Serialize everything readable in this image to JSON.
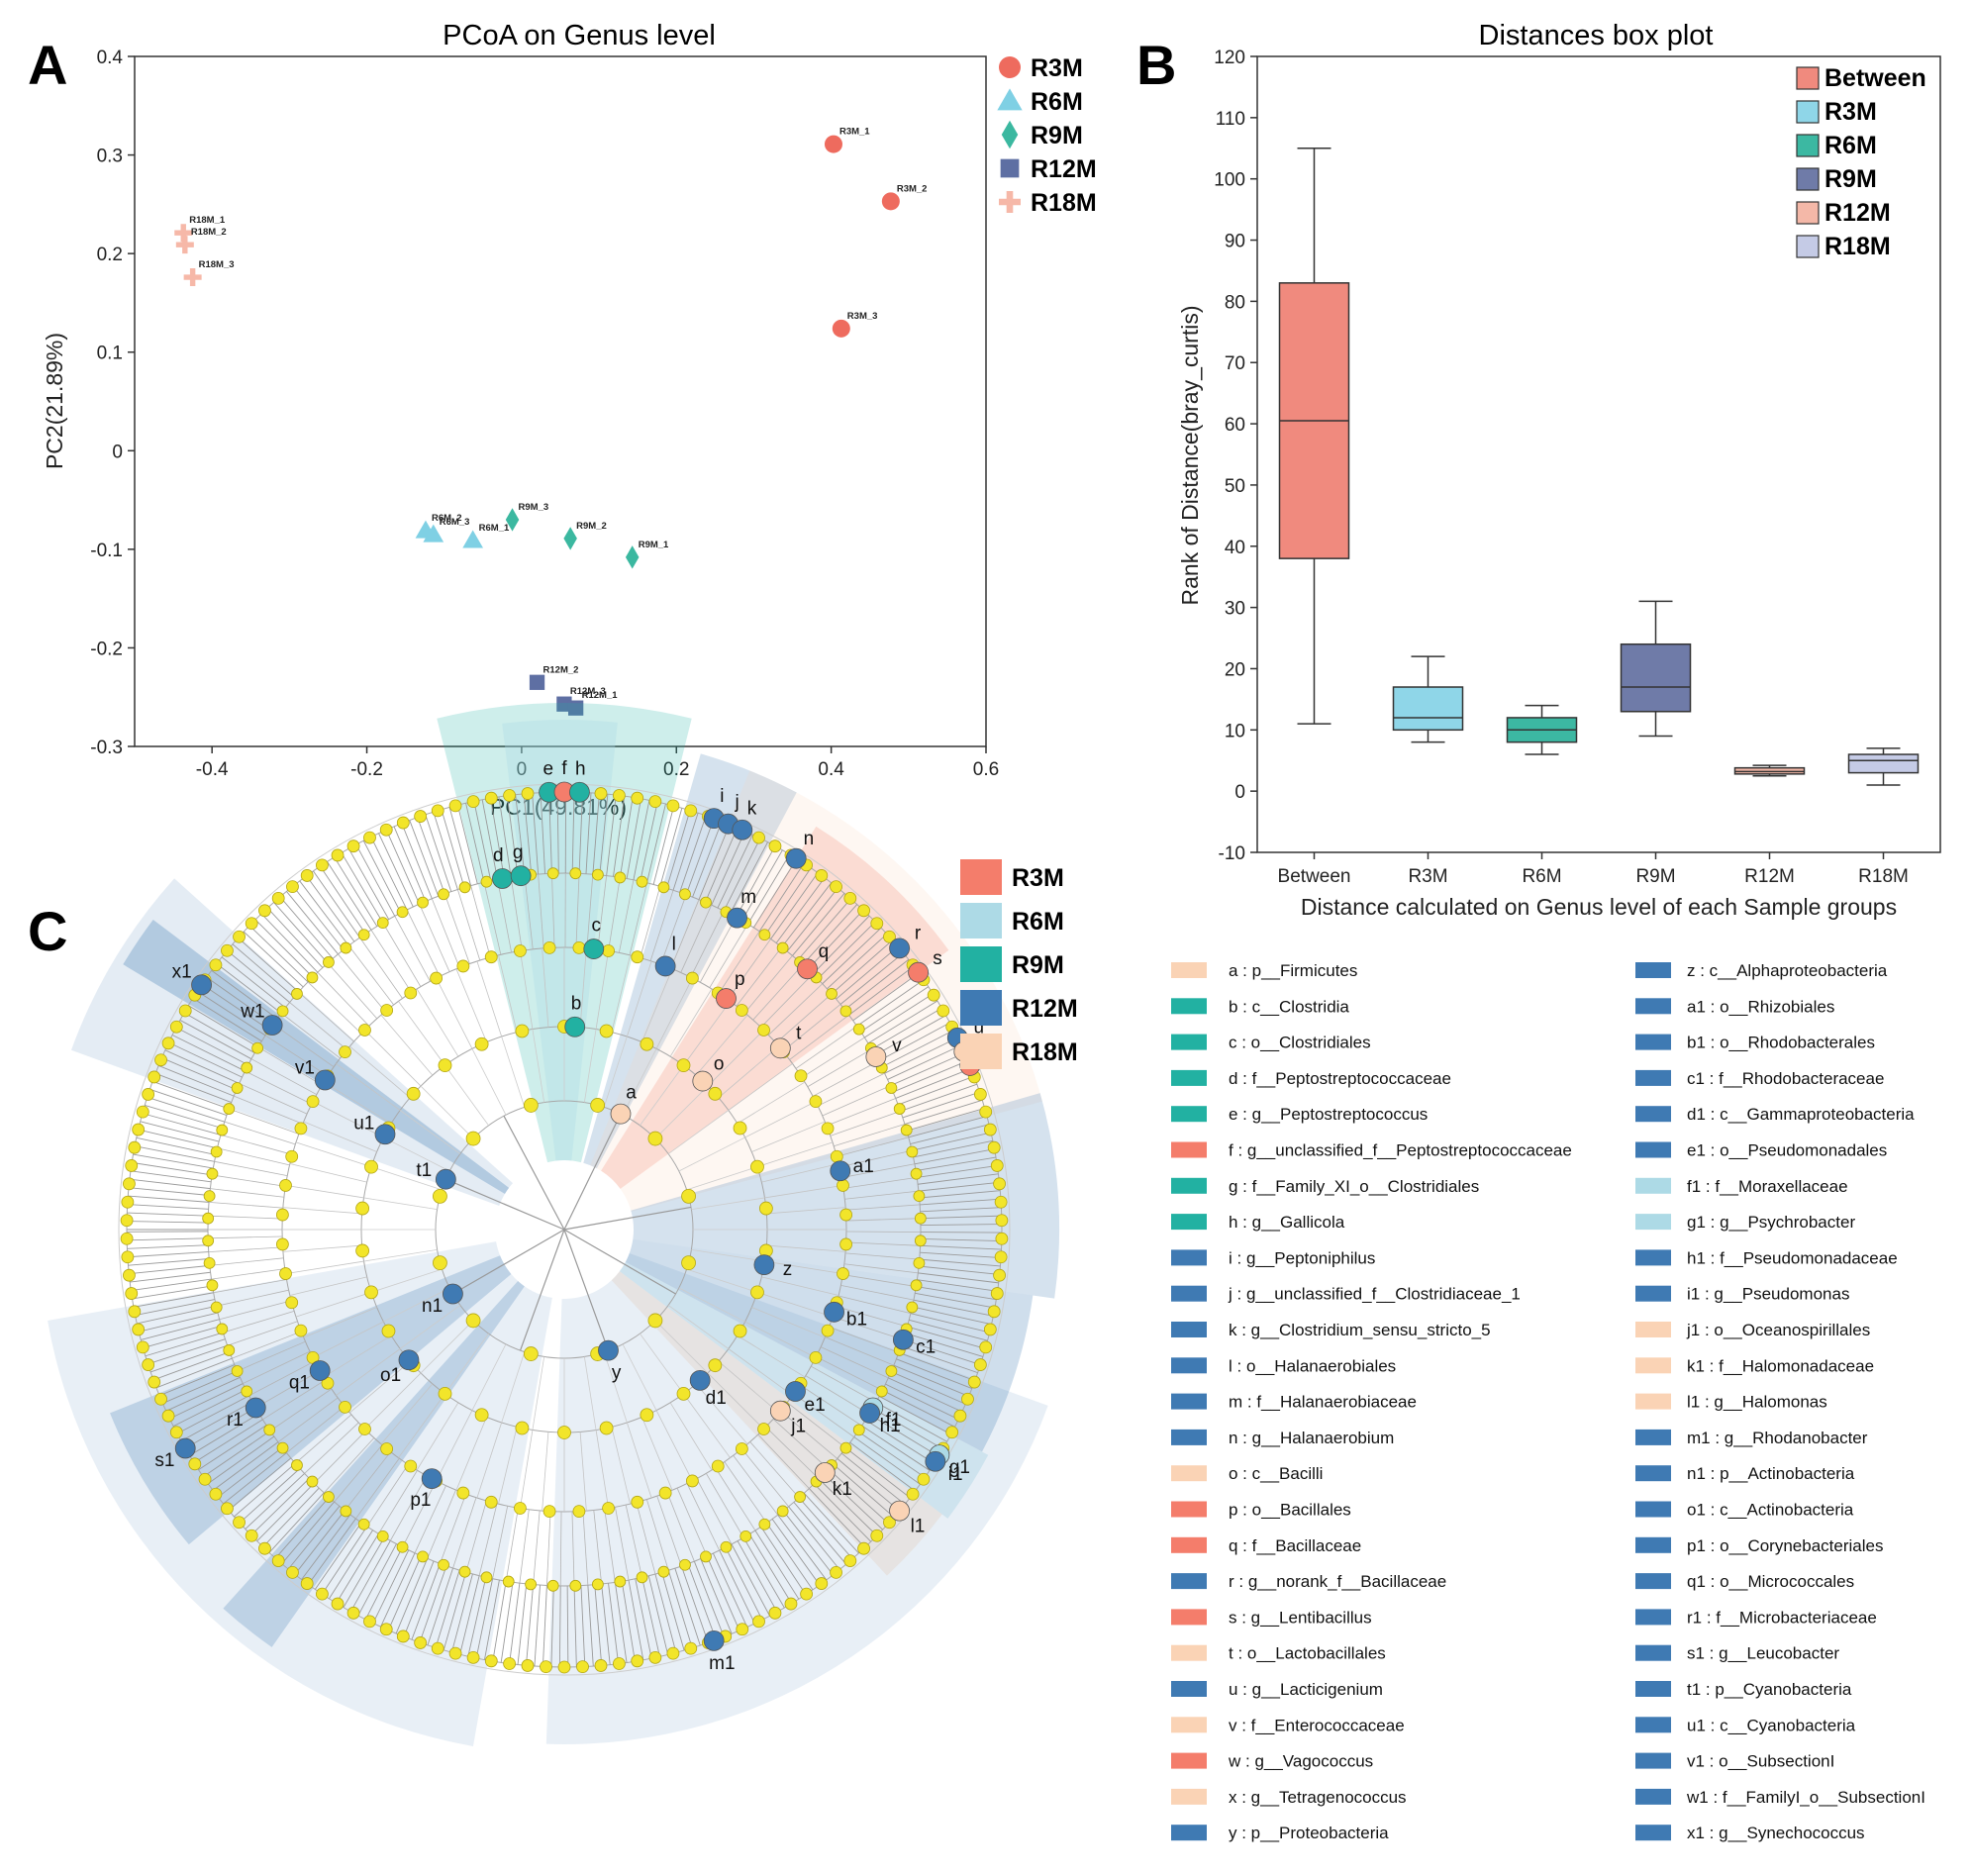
{
  "panels": {
    "A": {
      "letter": "A",
      "chart_data": {
        "type": "scatter",
        "title": "PCoA on Genus level",
        "xlabel": "PC1(49.81%)",
        "ylabel": "PC2(21.89%)",
        "xlim": [
          -0.5,
          0.6
        ],
        "ylim": [
          -0.3,
          0.4
        ],
        "xticks": [
          -0.4,
          -0.2,
          0,
          0.2,
          0.4,
          0.6
        ],
        "xtick_labels": [
          "-0.4",
          "-0.2",
          "0",
          "0.2",
          "0.4",
          "0.6"
        ],
        "yticks": [
          -0.3,
          -0.2,
          -0.1,
          0,
          0.1,
          0.2,
          0.3,
          0.4
        ],
        "ytick_labels": [
          "-0.3",
          "-0.2",
          "-0.1",
          "0",
          "0.1",
          "0.2",
          "0.3",
          "0.4"
        ],
        "legend_position": "outside-top-right",
        "series": [
          {
            "name": "R3M",
            "marker": "circle",
            "color": "#EE6B5E",
            "points": [
              {
                "label": "R3M_1",
                "x": 0.403,
                "y": 0.311
              },
              {
                "label": "R3M_2",
                "x": 0.477,
                "y": 0.253
              },
              {
                "label": "R3M_3",
                "x": 0.413,
                "y": 0.124
              }
            ]
          },
          {
            "name": "R6M",
            "marker": "triangle",
            "color": "#7FD0E4",
            "points": [
              {
                "label": "R6M_2",
                "x": -0.124,
                "y": -0.081
              },
              {
                "label": "R6M_3",
                "x": -0.114,
                "y": -0.085
              },
              {
                "label": "R6M_1",
                "x": -0.063,
                "y": -0.091
              }
            ]
          },
          {
            "name": "R9M",
            "marker": "diamond",
            "color": "#3BB8A0",
            "points": [
              {
                "label": "R9M_3",
                "x": -0.012,
                "y": -0.07
              },
              {
                "label": "R9M_2",
                "x": 0.063,
                "y": -0.089
              },
              {
                "label": "R9M_1",
                "x": 0.143,
                "y": -0.108
              }
            ]
          },
          {
            "name": "R12M",
            "marker": "square",
            "color": "#5E6FA3",
            "points": [
              {
                "label": "R12M_2",
                "x": 0.02,
                "y": -0.235
              },
              {
                "label": "R12M_3",
                "x": 0.055,
                "y": -0.257
              },
              {
                "label": "R12M_1",
                "x": 0.07,
                "y": -0.261
              }
            ]
          },
          {
            "name": "R18M",
            "marker": "plus",
            "color": "#F6B8A8",
            "points": [
              {
                "label": "R18M_1",
                "x": -0.437,
                "y": 0.221
              },
              {
                "label": "R18M_2",
                "x": -0.435,
                "y": 0.209
              },
              {
                "label": "R18M_3",
                "x": -0.425,
                "y": 0.176
              }
            ]
          }
        ]
      }
    },
    "B": {
      "letter": "B",
      "chart_data": {
        "type": "box",
        "title": "Distances box plot",
        "xlabel": "Distance calculated on Genus level of each Sample groups",
        "ylabel": "Rank of Distance(bray_curtis)",
        "ylim": [
          -10,
          120
        ],
        "yticks": [
          -10,
          0,
          10,
          20,
          30,
          40,
          50,
          60,
          70,
          80,
          90,
          100,
          110,
          120
        ],
        "ytick_labels": [
          "-10",
          "0",
          "10",
          "20",
          "30",
          "40",
          "50",
          "60",
          "70",
          "80",
          "90",
          "100",
          "110",
          "120"
        ],
        "legend_position": "top-right",
        "categories": [
          "Between",
          "R3M",
          "R6M",
          "R9M",
          "R12M",
          "R18M"
        ],
        "boxes": [
          {
            "name": "Between",
            "color": "#F08A7E",
            "whisker_low": 11,
            "q1": 38,
            "median": 60.5,
            "q3": 83,
            "whisker_high": 105
          },
          {
            "name": "R3M",
            "color": "#8FD6E8",
            "whisker_low": 8,
            "q1": 10,
            "median": 12,
            "q3": 17,
            "whisker_high": 22
          },
          {
            "name": "R6M",
            "color": "#3CB8A2",
            "whisker_low": 6,
            "q1": 8,
            "median": 10,
            "q3": 12,
            "whisker_high": 14
          },
          {
            "name": "R9M",
            "color": "#6F7BA8",
            "whisker_low": 9,
            "q1": 13,
            "median": 17,
            "q3": 24,
            "whisker_high": 31
          },
          {
            "name": "R12M",
            "color": "#F4B8A8",
            "whisker_low": 2.5,
            "q1": 2.8,
            "median": 3.2,
            "q3": 3.8,
            "whisker_high": 4.2
          },
          {
            "name": "R18M",
            "color": "#C5CBE6",
            "whisker_low": 1,
            "q1": 3,
            "median": 5,
            "q3": 6,
            "whisker_high": 7
          }
        ]
      }
    },
    "C": {
      "letter": "C",
      "chart_data": {
        "type": "cladogram",
        "groups": [
          {
            "name": "R3M",
            "color": "#F47D6B"
          },
          {
            "name": "R6M",
            "color": "#ADDAE6"
          },
          {
            "name": "R9M",
            "color": "#22B1A2"
          },
          {
            "name": "R12M",
            "color": "#3F7AB3"
          },
          {
            "name": "R18M",
            "color": "#FAD3B5"
          }
        ],
        "taxa": [
          {
            "key": "a",
            "label": "a : p__Firmicutes",
            "group": "R18M"
          },
          {
            "key": "b",
            "label": "b : c__Clostridia",
            "group": "R9M"
          },
          {
            "key": "c",
            "label": "c : o__Clostridiales",
            "group": "R9M"
          },
          {
            "key": "d",
            "label": "d : f__Peptostreptococcaceae",
            "group": "R9M"
          },
          {
            "key": "e",
            "label": "e : g__Peptostreptococcus",
            "group": "R9M"
          },
          {
            "key": "f",
            "label": "f : g__unclassified_f__Peptostreptococcaceae",
            "group": "R3M"
          },
          {
            "key": "g",
            "label": "g : f__Family_XI_o__Clostridiales",
            "group": "R9M"
          },
          {
            "key": "h",
            "label": "h : g__Gallicola",
            "group": "R9M"
          },
          {
            "key": "i",
            "label": "i : g__Peptoniphilus",
            "group": "R12M"
          },
          {
            "key": "j",
            "label": "j : g__unclassified_f__Clostridiaceae_1",
            "group": "R12M"
          },
          {
            "key": "k",
            "label": "k : g__Clostridium_sensu_stricto_5",
            "group": "R12M"
          },
          {
            "key": "l",
            "label": "l : o__Halanaerobiales",
            "group": "R12M"
          },
          {
            "key": "m",
            "label": "m : f__Halanaerobiaceae",
            "group": "R12M"
          },
          {
            "key": "n",
            "label": "n : g__Halanaerobium",
            "group": "R12M"
          },
          {
            "key": "o",
            "label": "o : c__Bacilli",
            "group": "R18M"
          },
          {
            "key": "p",
            "label": "p : o__Bacillales",
            "group": "R3M"
          },
          {
            "key": "q",
            "label": "q : f__Bacillaceae",
            "group": "R3M"
          },
          {
            "key": "r",
            "label": "r : g__norank_f__Bacillaceae",
            "group": "R12M"
          },
          {
            "key": "s",
            "label": "s : g__Lentibacillus",
            "group": "R3M"
          },
          {
            "key": "t",
            "label": "t : o__Lactobacillales",
            "group": "R18M"
          },
          {
            "key": "u",
            "label": "u : g__Lacticigenium",
            "group": "R12M"
          },
          {
            "key": "v",
            "label": "v : f__Enterococcaceae",
            "group": "R18M"
          },
          {
            "key": "w",
            "label": "w : g__Vagococcus",
            "group": "R3M"
          },
          {
            "key": "x",
            "label": "x : g__Tetragenococcus",
            "group": "R18M"
          },
          {
            "key": "y",
            "label": "y : p__Proteobacteria",
            "group": "R12M"
          },
          {
            "key": "z",
            "label": "z : c__Alphaproteobacteria",
            "group": "R12M"
          },
          {
            "key": "a1",
            "label": "a1 : o__Rhizobiales",
            "group": "R12M"
          },
          {
            "key": "b1",
            "label": "b1 : o__Rhodobacterales",
            "group": "R12M"
          },
          {
            "key": "c1",
            "label": "c1 : f__Rhodobacteraceae",
            "group": "R12M"
          },
          {
            "key": "d1",
            "label": "d1 : c__Gammaproteobacteria",
            "group": "R12M"
          },
          {
            "key": "e1",
            "label": "e1 : o__Pseudomonadales",
            "group": "R12M"
          },
          {
            "key": "f1",
            "label": "f1 : f__Moraxellaceae",
            "group": "R6M"
          },
          {
            "key": "g1",
            "label": "g1 : g__Psychrobacter",
            "group": "R6M"
          },
          {
            "key": "h1",
            "label": "h1 : f__Pseudomonadaceae",
            "group": "R12M"
          },
          {
            "key": "i1",
            "label": "i1 : g__Pseudomonas",
            "group": "R12M"
          },
          {
            "key": "j1",
            "label": "j1 : o__Oceanospirillales",
            "group": "R18M"
          },
          {
            "key": "k1",
            "label": "k1 : f__Halomonadaceae",
            "group": "R18M"
          },
          {
            "key": "l1",
            "label": "l1 : g__Halomonas",
            "group": "R18M"
          },
          {
            "key": "m1",
            "label": "m1 : g__Rhodanobacter",
            "group": "R12M"
          },
          {
            "key": "n1",
            "label": "n1 : p__Actinobacteria",
            "group": "R12M"
          },
          {
            "key": "o1",
            "label": "o1 : c__Actinobacteria",
            "group": "R12M"
          },
          {
            "key": "p1",
            "label": "p1 : o__Corynebacteriales",
            "group": "R12M"
          },
          {
            "key": "q1",
            "label": "q1 : o__Micrococcales",
            "group": "R12M"
          },
          {
            "key": "r1",
            "label": "r1 : f__Microbacteriaceae",
            "group": "R12M"
          },
          {
            "key": "s1",
            "label": "s1 : g__Leucobacter",
            "group": "R12M"
          },
          {
            "key": "t1",
            "label": "t1 : p__Cyanobacteria",
            "group": "R12M"
          },
          {
            "key": "u1",
            "label": "u1 : c__Cyanobacteria",
            "group": "R12M"
          },
          {
            "key": "v1",
            "label": "v1 : o__SubsectionI",
            "group": "R12M"
          },
          {
            "key": "w1",
            "label": "w1 : f__FamilyI_o__SubsectionI",
            "group": "R12M"
          },
          {
            "key": "x1",
            "label": "x1 : g__Synechococcus",
            "group": "R12M"
          }
        ],
        "nodes": [
          {
            "key": "a",
            "angle": -64,
            "ring": 1,
            "group": "R18M"
          },
          {
            "key": "b",
            "angle": -87,
            "ring": 2,
            "group": "R9M"
          },
          {
            "key": "c",
            "angle": -84,
            "ring": 3,
            "group": "R9M"
          },
          {
            "key": "d",
            "angle": -100,
            "ring": 4,
            "group": "R9M"
          },
          {
            "key": "g",
            "angle": -97,
            "ring": 4,
            "group": "R9M"
          },
          {
            "key": "e",
            "angle": -92,
            "ring": 5,
            "group": "R9M"
          },
          {
            "key": "f",
            "angle": -90,
            "ring": 5,
            "group": "R3M"
          },
          {
            "key": "h",
            "angle": -88,
            "ring": 5,
            "group": "R9M"
          },
          {
            "key": "i",
            "angle": -70,
            "ring": 5,
            "group": "R12M"
          },
          {
            "key": "j",
            "angle": -68,
            "ring": 5,
            "group": "R12M"
          },
          {
            "key": "k",
            "angle": -66,
            "ring": 5,
            "group": "R12M"
          },
          {
            "key": "l",
            "angle": -69,
            "ring": 3,
            "group": "R12M"
          },
          {
            "key": "m",
            "angle": -61,
            "ring": 4,
            "group": "R12M"
          },
          {
            "key": "n",
            "angle": -58,
            "ring": 5,
            "group": "R12M"
          },
          {
            "key": "o",
            "angle": -47,
            "ring": 2,
            "group": "R18M"
          },
          {
            "key": "p",
            "angle": -55,
            "ring": 3,
            "group": "R3M"
          },
          {
            "key": "q",
            "angle": -47,
            "ring": 4,
            "group": "R3M"
          },
          {
            "key": "r",
            "angle": -40,
            "ring": 5,
            "group": "R12M"
          },
          {
            "key": "s",
            "angle": -36,
            "ring": 5,
            "group": "R3M"
          },
          {
            "key": "t",
            "angle": -40,
            "ring": 3,
            "group": "R18M"
          },
          {
            "key": "u",
            "angle": -26,
            "ring": 5,
            "group": "R12M"
          },
          {
            "key": "v",
            "angle": -29,
            "ring": 4,
            "group": "R18M"
          },
          {
            "key": "w",
            "angle": -22,
            "ring": 5,
            "group": "R3M"
          },
          {
            "key": "x",
            "angle": -24,
            "ring": 5,
            "group": "R18M"
          },
          {
            "key": "y",
            "angle": 70,
            "ring": 1,
            "group": "R12M"
          },
          {
            "key": "z",
            "angle": 10,
            "ring": 2,
            "group": "R12M"
          },
          {
            "key": "a1",
            "angle": -12,
            "ring": 3,
            "group": "R12M"
          },
          {
            "key": "b1",
            "angle": 17,
            "ring": 3,
            "group": "R12M"
          },
          {
            "key": "c1",
            "angle": 18,
            "ring": 4,
            "group": "R12M"
          },
          {
            "key": "d1",
            "angle": 48,
            "ring": 2,
            "group": "R12M"
          },
          {
            "key": "e1",
            "angle": 35,
            "ring": 3,
            "group": "R12M"
          },
          {
            "key": "f1",
            "angle": 30,
            "ring": 4,
            "group": "R6M"
          },
          {
            "key": "g1",
            "angle": 31,
            "ring": 5,
            "group": "R6M"
          },
          {
            "key": "h1",
            "angle": 31,
            "ring": 4,
            "group": "R12M"
          },
          {
            "key": "i1",
            "angle": 32,
            "ring": 5,
            "group": "R12M"
          },
          {
            "key": "j1",
            "angle": 40,
            "ring": 3,
            "group": "R18M"
          },
          {
            "key": "k1",
            "angle": 43,
            "ring": 4,
            "group": "R18M"
          },
          {
            "key": "l1",
            "angle": 40,
            "ring": 5,
            "group": "R18M"
          },
          {
            "key": "m1",
            "angle": 70,
            "ring": 5,
            "group": "R12M"
          },
          {
            "key": "n1",
            "angle": 150,
            "ring": 1,
            "group": "R12M"
          },
          {
            "key": "o1",
            "angle": 140,
            "ring": 2,
            "group": "R12M"
          },
          {
            "key": "p1",
            "angle": 118,
            "ring": 3,
            "group": "R12M"
          },
          {
            "key": "q1",
            "angle": 150,
            "ring": 3,
            "group": "R12M"
          },
          {
            "key": "r1",
            "angle": 150,
            "ring": 4,
            "group": "R12M"
          },
          {
            "key": "s1",
            "angle": 150,
            "ring": 5,
            "group": "R12M"
          },
          {
            "key": "t1",
            "angle": -157,
            "ring": 1,
            "group": "R12M"
          },
          {
            "key": "u1",
            "angle": -152,
            "ring": 2,
            "group": "R12M"
          },
          {
            "key": "v1",
            "angle": -148,
            "ring": 3,
            "group": "R12M"
          },
          {
            "key": "w1",
            "angle": -145,
            "ring": 4,
            "group": "R12M"
          },
          {
            "key": "x1",
            "angle": -146,
            "ring": 5,
            "group": "R12M"
          }
        ]
      }
    }
  }
}
